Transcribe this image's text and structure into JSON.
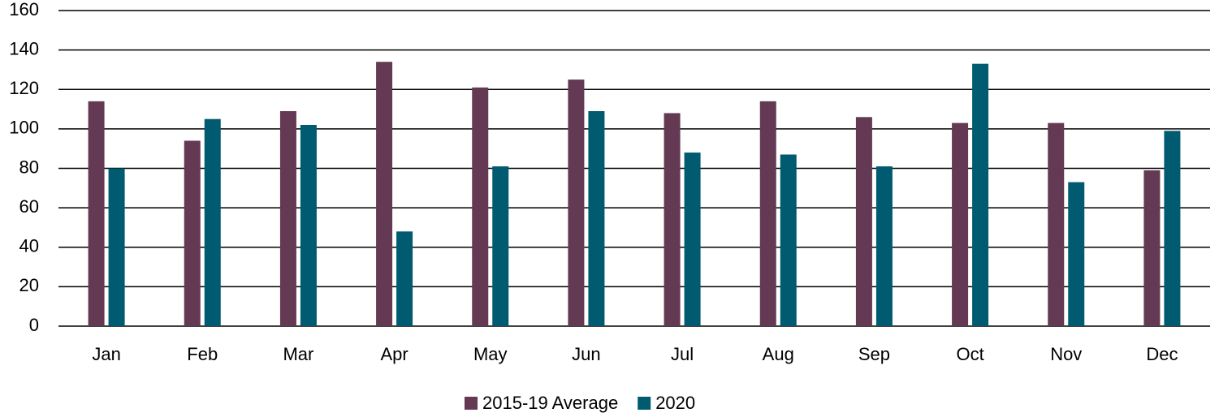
{
  "chart_data": {
    "type": "bar",
    "categories": [
      "Jan",
      "Feb",
      "Mar",
      "Apr",
      "May",
      "Jun",
      "Jul",
      "Aug",
      "Sep",
      "Oct",
      "Nov",
      "Dec"
    ],
    "series": [
      {
        "name": "2015-19 Average",
        "color": "#643953",
        "values": [
          114,
          94,
          109,
          134,
          121,
          125,
          108,
          114,
          106,
          103,
          103,
          79
        ]
      },
      {
        "name": "2020",
        "color": "#005a70",
        "values": [
          80,
          105,
          102,
          48,
          81,
          109,
          88,
          87,
          81,
          133,
          73,
          99
        ]
      }
    ],
    "ylim": [
      0,
      160
    ],
    "yticks": [
      0,
      20,
      40,
      60,
      80,
      100,
      120,
      140,
      160
    ],
    "grid": true,
    "legend": "bottom"
  }
}
